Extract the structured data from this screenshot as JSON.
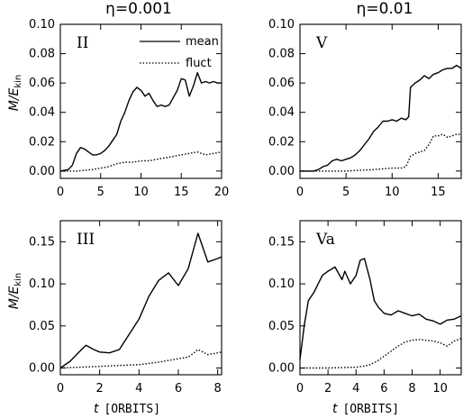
{
  "column_titles": [
    "η=0.001",
    "η=0.01"
  ],
  "y_axis_label": {
    "main": "M/E",
    "sub": "kin"
  },
  "x_axis_label": {
    "var": "t",
    "unit": "[ORBITS]"
  },
  "legend": {
    "mean": "mean",
    "fluct": "fluct"
  },
  "styles": {
    "mean": {
      "color": "#000000",
      "dash": "solid"
    },
    "fluct": {
      "color": "#000000",
      "dash": "dotted"
    }
  },
  "chart_data": [
    {
      "type": "line",
      "panel_label": "II",
      "xlim": [
        0,
        20
      ],
      "ylim": [
        -0.005,
        0.1
      ],
      "xticks": [
        "0",
        "5",
        "10",
        "15",
        "20"
      ],
      "yticks": [
        "0.00",
        "0.02",
        "0.04",
        "0.06",
        "0.08",
        "0.10"
      ],
      "xtick_values": [
        0,
        5,
        10,
        15,
        20
      ],
      "ytick_values": [
        0,
        0.02,
        0.04,
        0.06,
        0.08,
        0.1
      ],
      "series": [
        {
          "name": "mean",
          "x": [
            0,
            1,
            1.5,
            2,
            2.5,
            3,
            3.5,
            4,
            4.5,
            5,
            5.5,
            6,
            6.5,
            7,
            7.5,
            8,
            8.5,
            9,
            9.5,
            10,
            10.5,
            11,
            11.5,
            12,
            12.5,
            13,
            13.5,
            14,
            14.5,
            15,
            15.5,
            16,
            16.5,
            17,
            17.5,
            18,
            18.5,
            19,
            19.5,
            20
          ],
          "y": [
            0,
            0.001,
            0.004,
            0.012,
            0.016,
            0.015,
            0.013,
            0.011,
            0.011,
            0.012,
            0.014,
            0.017,
            0.021,
            0.025,
            0.034,
            0.04,
            0.048,
            0.054,
            0.057,
            0.055,
            0.051,
            0.053,
            0.048,
            0.044,
            0.045,
            0.044,
            0.045,
            0.05,
            0.055,
            0.063,
            0.062,
            0.051,
            0.058,
            0.067,
            0.06,
            0.061,
            0.06,
            0.061,
            0.06,
            0.06
          ]
        },
        {
          "name": "fluct",
          "x": [
            0,
            2,
            4,
            5,
            6,
            7,
            8,
            9,
            10,
            11,
            12,
            13,
            14,
            15,
            16,
            17,
            18,
            19,
            20
          ],
          "y": [
            0,
            0,
            0.001,
            0.002,
            0.003,
            0.005,
            0.006,
            0.006,
            0.007,
            0.007,
            0.008,
            0.009,
            0.01,
            0.011,
            0.012,
            0.013,
            0.011,
            0.012,
            0.013
          ]
        }
      ]
    },
    {
      "type": "line",
      "panel_label": "V",
      "xlim": [
        0,
        17.5
      ],
      "ylim": [
        -0.005,
        0.1
      ],
      "xticks": [
        "0",
        "5",
        "10",
        "15"
      ],
      "yticks": [
        "0.00",
        "0.02",
        "0.04",
        "0.06",
        "0.08",
        "0.10"
      ],
      "xtick_values": [
        0,
        5,
        10,
        15
      ],
      "ytick_values": [
        0,
        0.02,
        0.04,
        0.06,
        0.08,
        0.1
      ],
      "series": [
        {
          "name": "mean",
          "x": [
            0,
            1.5,
            2,
            2.5,
            3,
            3.5,
            4,
            4.5,
            5,
            5.5,
            6,
            6.5,
            7,
            7.5,
            8,
            8.5,
            9,
            9.5,
            10,
            10.5,
            11,
            11.5,
            11.8,
            12,
            12.5,
            13,
            13.5,
            14,
            14.5,
            15,
            15.5,
            16,
            16.5,
            17,
            17.5
          ],
          "y": [
            0,
            0,
            0.001,
            0.003,
            0.004,
            0.007,
            0.008,
            0.007,
            0.008,
            0.009,
            0.011,
            0.014,
            0.018,
            0.022,
            0.027,
            0.03,
            0.034,
            0.034,
            0.035,
            0.034,
            0.036,
            0.035,
            0.037,
            0.057,
            0.06,
            0.062,
            0.065,
            0.063,
            0.066,
            0.067,
            0.069,
            0.07,
            0.07,
            0.072,
            0.07
          ]
        },
        {
          "name": "fluct",
          "x": [
            0,
            5,
            8,
            10,
            11,
            11.5,
            12,
            12.5,
            13,
            13.5,
            14,
            14.5,
            15,
            15.5,
            16,
            16.5,
            17,
            17.5
          ],
          "y": [
            0,
            0,
            0.001,
            0.002,
            0.002,
            0.003,
            0.01,
            0.012,
            0.013,
            0.014,
            0.018,
            0.024,
            0.024,
            0.025,
            0.023,
            0.024,
            0.025,
            0.025
          ]
        }
      ]
    },
    {
      "type": "line",
      "panel_label": "III",
      "xlim": [
        0,
        8.2
      ],
      "ylim": [
        -0.008,
        0.175
      ],
      "xticks": [
        "0",
        "2",
        "4",
        "6",
        "8"
      ],
      "yticks": [
        "0.00",
        "0.05",
        "0.10",
        "0.15"
      ],
      "xtick_values": [
        0,
        2,
        4,
        6,
        8
      ],
      "ytick_values": [
        0,
        0.05,
        0.1,
        0.15
      ],
      "series": [
        {
          "name": "mean",
          "x": [
            0,
            0.5,
            1,
            1.3,
            1.7,
            2,
            2.5,
            3,
            3.5,
            4,
            4.5,
            5,
            5.5,
            6,
            6.5,
            7,
            7.5,
            8,
            8.2
          ],
          "y": [
            0,
            0.008,
            0.02,
            0.027,
            0.022,
            0.019,
            0.018,
            0.022,
            0.04,
            0.058,
            0.085,
            0.104,
            0.113,
            0.098,
            0.118,
            0.16,
            0.126,
            0.13,
            0.132
          ]
        },
        {
          "name": "fluct",
          "x": [
            0,
            1,
            2,
            3,
            4,
            5,
            5.5,
            6,
            6.5,
            6.8,
            7,
            7.5,
            8,
            8.2
          ],
          "y": [
            0,
            0.001,
            0.002,
            0.003,
            0.004,
            0.007,
            0.009,
            0.011,
            0.013,
            0.018,
            0.022,
            0.016,
            0.018,
            0.019
          ]
        }
      ]
    },
    {
      "type": "line",
      "panel_label": "Va",
      "xlim": [
        0,
        11.5
      ],
      "ylim": [
        -0.008,
        0.175
      ],
      "xticks": [
        "0",
        "2",
        "4",
        "6",
        "8",
        "10"
      ],
      "yticks": [
        "0.00",
        "0.05",
        "0.10",
        "0.15"
      ],
      "xtick_values": [
        0,
        2,
        4,
        6,
        8,
        10
      ],
      "ytick_values": [
        0,
        0.05,
        0.1,
        0.15
      ],
      "series": [
        {
          "name": "mean",
          "x": [
            0,
            0.3,
            0.6,
            1,
            1.3,
            1.6,
            2,
            2.5,
            3,
            3.2,
            3.6,
            4,
            4.3,
            4.6,
            5,
            5.3,
            5.6,
            6,
            6.5,
            7,
            7.5,
            8,
            8.5,
            9,
            9.5,
            10,
            10.5,
            11,
            11.5
          ],
          "y": [
            0.01,
            0.05,
            0.08,
            0.09,
            0.1,
            0.11,
            0.115,
            0.12,
            0.105,
            0.115,
            0.1,
            0.11,
            0.128,
            0.13,
            0.105,
            0.08,
            0.072,
            0.065,
            0.063,
            0.068,
            0.065,
            0.062,
            0.064,
            0.058,
            0.056,
            0.052,
            0.057,
            0.058,
            0.062
          ]
        },
        {
          "name": "fluct",
          "x": [
            0,
            2,
            4,
            4.5,
            5,
            5.5,
            6,
            6.5,
            7,
            7.5,
            8,
            8.5,
            9,
            9.5,
            10,
            10.5,
            11,
            11.5
          ],
          "y": [
            0,
            0,
            0.001,
            0.002,
            0.004,
            0.008,
            0.014,
            0.02,
            0.026,
            0.031,
            0.033,
            0.034,
            0.033,
            0.032,
            0.03,
            0.026,
            0.032,
            0.035
          ]
        }
      ]
    }
  ]
}
